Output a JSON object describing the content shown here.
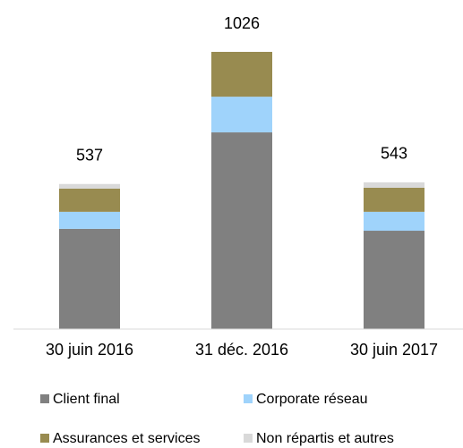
{
  "chart_data": {
    "type": "stacked-bar",
    "categories": [
      "30 juin 2016",
      "31 déc. 2016",
      "30 juin 2017"
    ],
    "totals": [
      537,
      1026,
      543
    ],
    "series": [
      {
        "name": "Client final",
        "color": "#808080",
        "values": [
          371,
          728,
          364
        ]
      },
      {
        "name": "Corporate réseau",
        "color": "#9fd3fb",
        "values": [
          63,
          132,
          70
        ]
      },
      {
        "name": "Assurances et services",
        "color": "#988b50",
        "values": [
          86,
          166,
          89
        ]
      },
      {
        "name": "Non répartis et autres",
        "color": "#d9d9d9",
        "values": [
          17,
          0,
          20
        ]
      }
    ]
  }
}
